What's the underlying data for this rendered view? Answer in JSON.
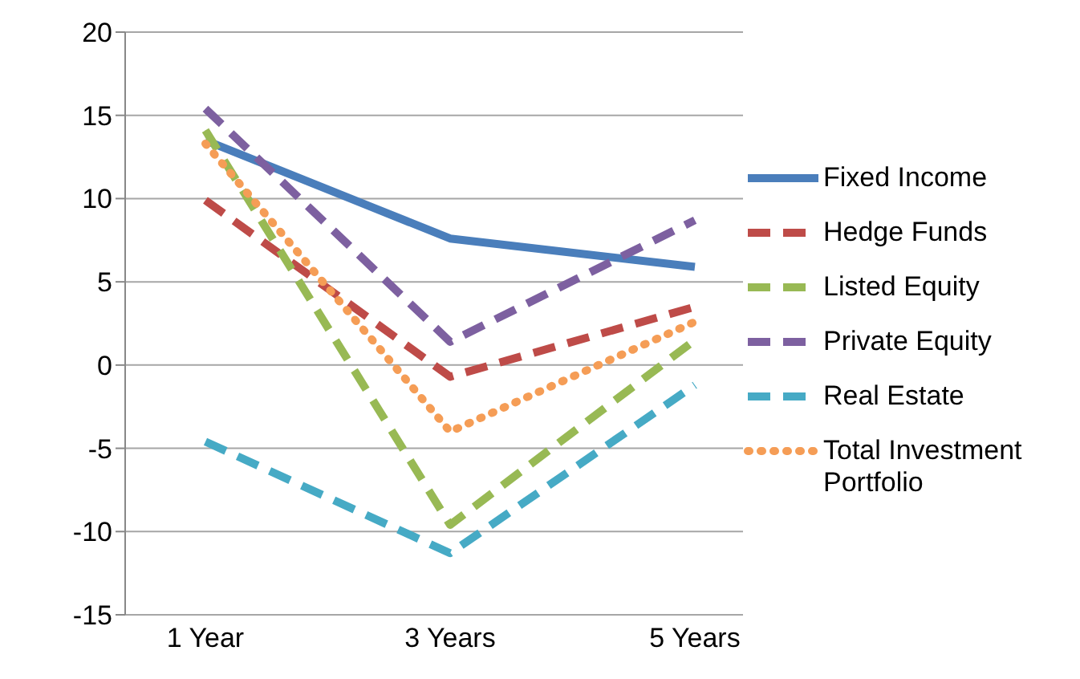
{
  "chart_data": {
    "type": "line",
    "categories": [
      "1 Year",
      "3 Years",
      "5 Years"
    ],
    "series": [
      {
        "name": "Fixed Income",
        "color": "#4a7ebb",
        "values": [
          13.5,
          7.6,
          5.9
        ],
        "line_style": "solid"
      },
      {
        "name": "Hedge Funds",
        "color": "#be4b48",
        "values": [
          9.9,
          -0.7,
          3.5
        ],
        "line_style": "dashed"
      },
      {
        "name": "Listed Equity",
        "color": "#98b954",
        "values": [
          14.1,
          -9.6,
          1.5
        ],
        "line_style": "dashed"
      },
      {
        "name": "Private Equity",
        "color": "#7d60a0",
        "values": [
          15.4,
          1.4,
          8.7
        ],
        "line_style": "dashed"
      },
      {
        "name": "Real Estate",
        "color": "#46aac5",
        "values": [
          -4.6,
          -11.3,
          -1.2
        ],
        "line_style": "dashed"
      },
      {
        "name": "Total Investment Portfolio",
        "color": "#f59d56",
        "values": [
          13.3,
          -4.0,
          2.6
        ],
        "line_style": "dotted"
      }
    ],
    "ylim": [
      -15,
      20
    ],
    "yticks": [
      -15,
      -10,
      -5,
      0,
      5,
      10,
      15,
      20
    ],
    "grid": "y",
    "legend": "right",
    "marker": "none"
  }
}
